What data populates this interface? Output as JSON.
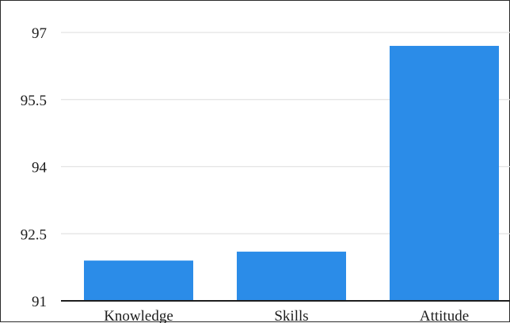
{
  "chart_data": {
    "type": "bar",
    "title": "",
    "xlabel": "",
    "ylabel": "",
    "categories": [
      "Knowledge",
      "Skills",
      "Attitude"
    ],
    "values": [
      91.9,
      92.1,
      96.7
    ],
    "ylim": [
      91,
      97
    ],
    "yticks": [
      91,
      92.5,
      94,
      95.5,
      97
    ],
    "ytick_labels": [
      "91",
      "92.5",
      "94",
      "95.5",
      "97"
    ],
    "grid": true,
    "legend": "none",
    "colors": {
      "bar": "#2b8ce8",
      "grid": "#e3e3e3",
      "axis": "#1e1e1e"
    }
  }
}
